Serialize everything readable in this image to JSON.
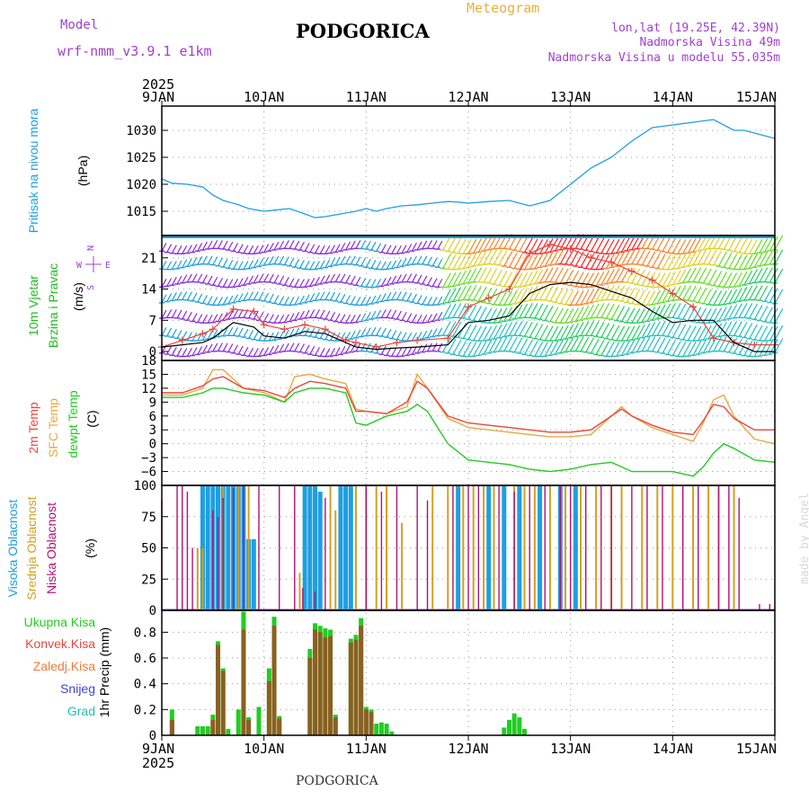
{
  "header": {
    "model_label": "Model",
    "model_name": "wrf-nmm_v3.9.1 e1km",
    "title": "PODGORICA",
    "subtitle": "Meteogram",
    "coords": "lon,lat (19.25E, 42.39N)",
    "elevation": "Nadmorska Visina 49m",
    "model_elevation": "Nadmorska Visina u modelu 55.035m",
    "footer": "PODGORICA",
    "credit": "made by Angel"
  },
  "colors": {
    "pressure": "#1e9fe0",
    "temp2m": "#e8453c",
    "sfc": "#e8a840",
    "dew": "#22cc22",
    "high_cloud": "#1e9fe0",
    "mid_cloud": "#d4a020",
    "low_cloud": "#b0107a",
    "wind_label": "#22bb22",
    "wind_barb_low": "#8a2be2",
    "wind_barb_mid": "#1e9fe0",
    "gust": "#e8453c",
    "speed": "#000000",
    "title_purple": "#a040d0",
    "subtitle_orange": "#e8b040"
  },
  "chart_data": [
    {
      "panel": "pressure",
      "type": "line",
      "x_axis": {
        "top_year": "2025",
        "bottom_year": "2025",
        "ticks": [
          "9JAN",
          "10JAN",
          "11JAN",
          "12JAN",
          "13JAN",
          "14JAN",
          "15JAN"
        ]
      },
      "y_label": "Pritisak na nivou mora",
      "y_unit": "(hPa)",
      "y_ticks": [
        1015,
        1020,
        1025,
        1030
      ],
      "ylim": [
        1010.5,
        1034.5
      ],
      "x": [
        0,
        0.1,
        0.25,
        0.4,
        0.5,
        0.6,
        0.75,
        0.85,
        1.0,
        1.1,
        1.25,
        1.4,
        1.5,
        1.6,
        1.75,
        1.9,
        2.0,
        2.1,
        2.2,
        2.35,
        2.5,
        2.65,
        2.8,
        2.9,
        3.0,
        3.2,
        3.4,
        3.6,
        3.8,
        4.0,
        4.2,
        4.4,
        4.6,
        4.8,
        5.0,
        5.2,
        5.4,
        5.6,
        5.7,
        5.8,
        6.0
      ],
      "y": [
        1021,
        1020.2,
        1020,
        1019.5,
        1018,
        1017,
        1016.2,
        1015.5,
        1015,
        1015.2,
        1015.5,
        1014.5,
        1013.8,
        1014,
        1014.5,
        1015,
        1015.5,
        1015,
        1015.5,
        1016,
        1016.2,
        1016.5,
        1016.8,
        1016.7,
        1016.5,
        1016.8,
        1017,
        1016,
        1017,
        1020,
        1023,
        1025,
        1028,
        1030.5,
        1031,
        1031.5,
        1032,
        1030,
        1030,
        1029.5,
        1028.5
      ]
    },
    {
      "panel": "wind",
      "type": "line",
      "y_label_1": "10m Vjetar",
      "y_label_2": "Brzina i Pravac",
      "y_unit": "(m/s)",
      "direction_key": {
        "N": "N",
        "W": "W",
        "S": "S",
        "E": "E"
      },
      "y_ticks": [
        0,
        7,
        14,
        21
      ],
      "ylim": [
        -2,
        26
      ],
      "x": [
        0,
        0.2,
        0.4,
        0.5,
        0.7,
        0.9,
        1.0,
        1.2,
        1.4,
        1.6,
        1.8,
        1.9,
        2.1,
        2.3,
        2.5,
        2.8,
        3.0,
        3.2,
        3.4,
        3.6,
        3.8,
        4.0,
        4.2,
        4.4,
        4.6,
        4.8,
        5.0,
        5.2,
        5.4,
        5.6,
        5.8,
        6.0
      ],
      "speed": [
        1,
        1.5,
        2,
        3,
        6.5,
        5.5,
        3.5,
        3,
        4.5,
        4,
        2,
        1,
        0.5,
        0.8,
        1,
        1.5,
        6.5,
        7,
        8,
        13,
        15,
        15.5,
        15,
        13.5,
        12,
        9,
        6.5,
        7,
        7,
        2,
        0,
        0
      ],
      "gust": [
        1,
        2.5,
        4,
        5,
        9.5,
        9,
        6,
        5,
        6,
        5,
        2.5,
        2,
        1,
        2,
        2.5,
        3,
        10,
        12,
        14,
        22,
        24,
        23,
        21,
        20,
        18,
        16,
        13,
        10,
        3,
        2,
        1.5,
        1.5
      ]
    },
    {
      "panel": "temperature",
      "type": "line",
      "y_label_1": "2m Temp",
      "y_label_2": "SFC Temp",
      "y_label_3": "dewpt Temp",
      "y_unit": "(C)",
      "y_ticks": [
        -6,
        -3,
        0,
        3,
        6,
        9,
        12,
        15,
        18
      ],
      "ylim": [
        -9,
        18
      ],
      "x": [
        0,
        0.2,
        0.4,
        0.5,
        0.6,
        0.8,
        1.0,
        1.2,
        1.3,
        1.45,
        1.6,
        1.8,
        1.9,
        2.0,
        2.2,
        2.4,
        2.5,
        2.6,
        2.8,
        3.0,
        3.2,
        3.4,
        3.6,
        3.8,
        4.0,
        4.2,
        4.4,
        4.5,
        4.6,
        4.8,
        5.0,
        5.2,
        5.3,
        5.4,
        5.5,
        5.6,
        5.8,
        6.0
      ],
      "temp2m": [
        11,
        11,
        12.5,
        14,
        14.5,
        12,
        11.5,
        10,
        12,
        13.5,
        13,
        12,
        7,
        7,
        6.5,
        9,
        13.5,
        12,
        6,
        4.5,
        4,
        3.5,
        3,
        2.5,
        2.5,
        3,
        6,
        7.5,
        6,
        4,
        2.5,
        2,
        5,
        8.5,
        8,
        5.5,
        3,
        3
      ],
      "sfc": [
        10.5,
        10.5,
        12,
        16,
        16,
        12,
        11,
        9,
        14.5,
        15,
        14,
        13,
        7.5,
        7,
        6.5,
        8,
        15,
        12,
        5.5,
        3.5,
        3,
        2.5,
        2,
        1.5,
        1.5,
        2,
        6,
        8,
        6,
        3.5,
        2,
        0.5,
        4.5,
        9.5,
        10.5,
        6,
        1,
        0
      ],
      "dew": [
        10,
        10,
        11,
        12,
        12,
        11,
        10.5,
        9,
        11,
        12,
        12,
        11,
        4.5,
        4,
        6,
        7,
        8.5,
        7,
        0,
        -3.5,
        -4,
        -4.5,
        -5.5,
        -6,
        -5.5,
        -4.5,
        -4,
        -5,
        -6,
        -6,
        -6,
        -7,
        -5,
        -2,
        0,
        -1,
        -3.5,
        -4
      ]
    },
    {
      "panel": "clouds",
      "type": "bar",
      "y_label_1": "Visoka Oblacnost",
      "y_label_2": "Srednja Oblacnost",
      "y_label_3": "Niska Oblacnost",
      "y_unit": "(%)",
      "y_ticks": [
        0,
        25,
        50,
        75,
        100
      ],
      "ylim": [
        0,
        100
      ],
      "high": [
        [
          0.4,
          100
        ],
        [
          0.45,
          100
        ],
        [
          0.5,
          100
        ],
        [
          0.55,
          100
        ],
        [
          0.6,
          100
        ],
        [
          0.65,
          100
        ],
        [
          0.7,
          100
        ],
        [
          0.75,
          100
        ],
        [
          0.8,
          100
        ],
        [
          0.85,
          57
        ],
        [
          0.9,
          57
        ],
        [
          1.4,
          100
        ],
        [
          1.45,
          100
        ],
        [
          1.5,
          100
        ],
        [
          1.55,
          95
        ],
        [
          1.75,
          100
        ],
        [
          1.8,
          100
        ],
        [
          1.85,
          100
        ],
        [
          2.9,
          100
        ],
        [
          3.2,
          100
        ],
        [
          3.35,
          100
        ],
        [
          3.5,
          100
        ],
        [
          3.7,
          100
        ],
        [
          3.9,
          100
        ],
        [
          4.05,
          100
        ]
      ],
      "mid": [
        [
          0.35,
          50
        ],
        [
          0.4,
          50
        ],
        [
          0.6,
          100
        ],
        [
          0.75,
          100
        ],
        [
          0.85,
          100
        ],
        [
          1.35,
          30
        ],
        [
          1.65,
          100
        ],
        [
          1.7,
          80
        ],
        [
          1.9,
          100
        ],
        [
          2.0,
          100
        ],
        [
          2.1,
          100
        ],
        [
          2.2,
          100
        ],
        [
          2.35,
          70
        ],
        [
          2.65,
          100
        ],
        [
          2.8,
          100
        ],
        [
          2.95,
          100
        ],
        [
          3.05,
          100
        ],
        [
          3.15,
          100
        ],
        [
          3.25,
          100
        ],
        [
          3.45,
          100
        ],
        [
          3.55,
          100
        ],
        [
          3.65,
          100
        ],
        [
          3.8,
          100
        ],
        [
          3.95,
          100
        ],
        [
          4.1,
          100
        ],
        [
          4.25,
          100
        ],
        [
          4.4,
          100
        ],
        [
          4.5,
          100
        ],
        [
          4.7,
          100
        ],
        [
          4.85,
          100
        ],
        [
          5.0,
          100
        ],
        [
          5.2,
          100
        ],
        [
          5.35,
          100
        ],
        [
          5.45,
          100
        ],
        [
          5.6,
          100
        ]
      ],
      "low": [
        [
          0.0,
          88
        ],
        [
          0.15,
          100
        ],
        [
          0.2,
          100
        ],
        [
          0.25,
          95
        ],
        [
          0.3,
          50
        ],
        [
          0.5,
          80
        ],
        [
          0.55,
          75
        ],
        [
          0.6,
          90
        ],
        [
          0.7,
          98
        ],
        [
          0.8,
          100
        ],
        [
          0.95,
          100
        ],
        [
          1.15,
          100
        ],
        [
          1.3,
          100
        ],
        [
          1.38,
          18
        ],
        [
          1.5,
          15
        ],
        [
          1.6,
          90
        ],
        [
          2.0,
          100
        ],
        [
          2.15,
          95
        ],
        [
          2.3,
          100
        ],
        [
          2.5,
          100
        ],
        [
          2.6,
          88
        ],
        [
          2.85,
          100
        ],
        [
          3.0,
          100
        ],
        [
          3.1,
          100
        ],
        [
          3.3,
          100
        ],
        [
          3.45,
          95
        ],
        [
          3.6,
          100
        ],
        [
          3.75,
          100
        ],
        [
          3.9,
          100
        ],
        [
          4.0,
          100
        ],
        [
          4.15,
          100
        ],
        [
          4.3,
          100
        ],
        [
          4.4,
          100
        ],
        [
          4.6,
          100
        ],
        [
          4.75,
          100
        ],
        [
          4.9,
          100
        ],
        [
          5.1,
          100
        ],
        [
          5.25,
          100
        ],
        [
          5.45,
          100
        ],
        [
          5.55,
          100
        ],
        [
          5.65,
          90
        ],
        [
          5.85,
          5
        ],
        [
          5.95,
          5
        ]
      ]
    },
    {
      "panel": "precipitation",
      "type": "bar",
      "legend": [
        "Ukupna Kisa",
        "Konvek.Kisa",
        "Zaledj.Kisa",
        "Snijeg",
        "Grad"
      ],
      "legend_colors": [
        "#22cc22",
        "#e8453c",
        "#f07a3a",
        "#4040e0",
        "#22c0b0"
      ],
      "y_label": "1hr Precip (mm)",
      "y_ticks": [
        0,
        0.2,
        0.4,
        0.6,
        0.8
      ],
      "ylim": [
        0,
        0.97
      ],
      "total": [
        [
          0.1,
          0.2
        ],
        [
          0.35,
          0.07
        ],
        [
          0.4,
          0.07
        ],
        [
          0.45,
          0.07
        ],
        [
          0.5,
          0.16
        ],
        [
          0.55,
          0.73
        ],
        [
          0.6,
          0.52
        ],
        [
          0.65,
          0.05
        ],
        [
          0.75,
          0.2
        ],
        [
          0.8,
          0.96
        ],
        [
          0.85,
          0.14
        ],
        [
          0.95,
          0.22
        ],
        [
          1.05,
          0.52
        ],
        [
          1.1,
          0.92
        ],
        [
          1.15,
          0.15
        ],
        [
          1.45,
          0.67
        ],
        [
          1.5,
          0.87
        ],
        [
          1.55,
          0.85
        ],
        [
          1.6,
          0.83
        ],
        [
          1.65,
          0.82
        ],
        [
          1.7,
          0.16
        ],
        [
          1.85,
          0.75
        ],
        [
          1.9,
          0.78
        ],
        [
          1.95,
          0.91
        ],
        [
          2.0,
          0.22
        ],
        [
          2.05,
          0.2
        ],
        [
          2.1,
          0.09
        ],
        [
          2.15,
          0.1
        ],
        [
          2.2,
          0.09
        ],
        [
          2.25,
          0.03
        ],
        [
          3.35,
          0.06
        ],
        [
          3.4,
          0.12
        ],
        [
          3.45,
          0.17
        ],
        [
          3.5,
          0.14
        ],
        [
          3.55,
          0.05
        ]
      ],
      "convective": [
        [
          0.1,
          0.12
        ],
        [
          0.5,
          0.12
        ],
        [
          0.55,
          0.7
        ],
        [
          0.6,
          0.5
        ],
        [
          0.8,
          0.82
        ],
        [
          0.85,
          0.12
        ],
        [
          1.05,
          0.42
        ],
        [
          1.1,
          0.85
        ],
        [
          1.15,
          0.13
        ],
        [
          1.45,
          0.6
        ],
        [
          1.5,
          0.82
        ],
        [
          1.55,
          0.8
        ],
        [
          1.6,
          0.76
        ],
        [
          1.65,
          0.77
        ],
        [
          1.7,
          0.14
        ],
        [
          1.85,
          0.72
        ],
        [
          1.9,
          0.74
        ],
        [
          1.95,
          0.85
        ],
        [
          2.0,
          0.2
        ],
        [
          2.05,
          0.18
        ]
      ]
    }
  ]
}
